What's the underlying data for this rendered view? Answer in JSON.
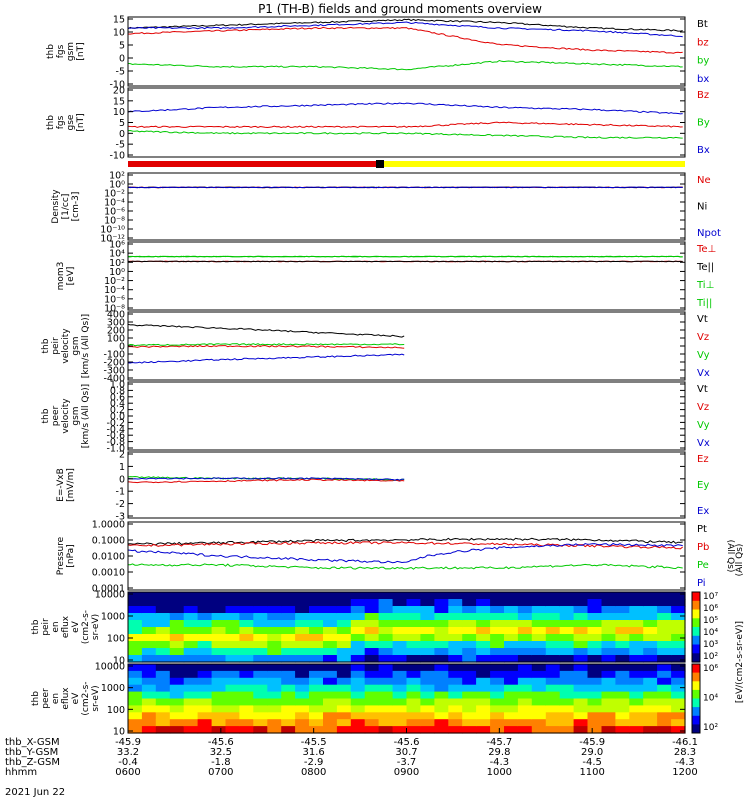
{
  "title": "P1 (TH-B) fields and ground moments overview",
  "panels": [
    {
      "id": "fgs_gsm",
      "ylabel": [
        "thb",
        "fgs",
        "gsm",
        "[nT]"
      ],
      "ticks": [
        "15",
        "10",
        "5",
        "0",
        "-5",
        "-10"
      ],
      "legend": [
        {
          "text": "Bt",
          "color": "#000000"
        },
        {
          "text": "bz",
          "color": "#e00000"
        },
        {
          "text": "by",
          "color": "#00c800"
        },
        {
          "text": "bx",
          "color": "#0000d0"
        }
      ]
    },
    {
      "id": "fgs_gse",
      "ylabel": [
        "thb",
        "fgs",
        "gse",
        "[nT]"
      ],
      "ticks": [
        "20",
        "15",
        "10",
        "5",
        "0",
        "-5",
        "-10"
      ],
      "legend": [
        {
          "text": "Bz",
          "color": "#e00000"
        },
        {
          "text": "By",
          "color": "#00c800"
        },
        {
          "text": "Bx",
          "color": "#0000d0"
        }
      ]
    },
    {
      "id": "density",
      "ylabel": [
        "Density",
        "[1/cc]",
        "[cm-3]"
      ],
      "ticks": [
        "10²",
        "10⁰",
        "10⁻²",
        "10⁻⁴",
        "10⁻⁶",
        "10⁻⁸",
        "10⁻¹⁰",
        "10⁻¹²"
      ],
      "legend": [
        {
          "text": "Ne",
          "color": "#e00000"
        },
        {
          "text": "Ni",
          "color": "#000000"
        },
        {
          "text": "Npot",
          "color": "#0000d0"
        }
      ]
    },
    {
      "id": "temperature",
      "ylabel": [
        "mom3",
        "[eV]"
      ],
      "ticks": [
        "10⁶",
        "10⁴",
        "10²",
        "10⁰",
        "10⁻²",
        "10⁻⁴",
        "10⁻⁶",
        "10⁻⁸"
      ],
      "legend": [
        {
          "text": "Te⊥",
          "color": "#e00000"
        },
        {
          "text": "Te||",
          "color": "#000000"
        },
        {
          "text": "Ti⊥",
          "color": "#00c800"
        },
        {
          "text": "Ti||",
          "color": "#00c800"
        }
      ]
    },
    {
      "id": "peir_velocity",
      "ylabel": [
        "thb",
        "peir",
        "velocity",
        "gsm",
        "[km/s (All Qs)]"
      ],
      "ticks": [
        "400",
        "300",
        "200",
        "100",
        "0",
        "-100",
        "-200",
        "-300",
        "-400"
      ],
      "legend": [
        {
          "text": "Vt",
          "color": "#000000"
        },
        {
          "text": "Vz",
          "color": "#e00000"
        },
        {
          "text": "Vy",
          "color": "#00c800"
        },
        {
          "text": "Vx",
          "color": "#0000d0"
        }
      ]
    },
    {
      "id": "peer_velocity",
      "ylabel": [
        "thb",
        "peer",
        "velocity",
        "gsm",
        "[km/s (All Qs)]"
      ],
      "ticks": [
        "1.0",
        "0.8",
        "0.6",
        "0.4",
        "0.2",
        "0.0",
        "-0.2",
        "-0.4",
        "-0.6",
        "-0.8",
        "-1.0"
      ],
      "legend": [
        {
          "text": "Vt",
          "color": "#000000"
        },
        {
          "text": "Vz",
          "color": "#e00000"
        },
        {
          "text": "Vy",
          "color": "#00c800"
        },
        {
          "text": "Vx",
          "color": "#0000d0"
        }
      ]
    },
    {
      "id": "efield",
      "ylabel": [
        "E=-VxB",
        "[mV/m]"
      ],
      "ticks": [
        "2",
        "1",
        "0",
        "-1",
        "-2",
        "-3"
      ],
      "legend": [
        {
          "text": "Ez",
          "color": "#e00000"
        },
        {
          "text": "Ey",
          "color": "#00c800"
        },
        {
          "text": "Ex",
          "color": "#0000d0"
        }
      ]
    },
    {
      "id": "pressure",
      "ylabel": [
        "Pressure",
        "[nPa]"
      ],
      "ticks": [
        "1.0000",
        "0.1000",
        "0.0100",
        "0.0010",
        "0.0001"
      ],
      "legend": [
        {
          "text": "Pt",
          "color": "#000000"
        },
        {
          "text": "Pb",
          "color": "#e00000"
        },
        {
          "text": "Pe",
          "color": "#00c800"
        },
        {
          "text": "Pi",
          "color": "#0000d0"
        }
      ],
      "legend_note": "(All Qs)"
    },
    {
      "id": "peir_spec",
      "ylabel": [
        "thb",
        "peir",
        "en",
        "eflux",
        "eV",
        "(cm2-s-",
        "sr-eV)"
      ],
      "ticks": [
        "10000",
        "1000",
        "100",
        "10"
      ],
      "colorbar": [
        "10⁷",
        "10⁶",
        "10⁵",
        "10⁴",
        "10³",
        "10²"
      ]
    },
    {
      "id": "peer_spec",
      "ylabel": [
        "thb",
        "peer",
        "en",
        "eflux",
        "eV",
        "(cm2-s-",
        "sr-eV)"
      ],
      "ticks": [
        "10000",
        "1000",
        "100",
        "10"
      ],
      "colorbar": [
        "10⁶",
        "10⁴",
        "10²"
      ]
    }
  ],
  "colorbar_label": "[eV/(cm2-s-sr-eV)]",
  "colorbar_label2": "(All Qs)",
  "xaxis": {
    "rows": [
      {
        "label": "thb_X-GSM",
        "values": [
          "-45.9",
          "-45.6",
          "-45.5",
          "-45.6",
          "-45.7",
          "-45.9",
          "-46.1"
        ]
      },
      {
        "label": "thb_Y-GSM",
        "values": [
          "33.2",
          "32.5",
          "31.6",
          "30.7",
          "29.8",
          "29.0",
          "28.3"
        ]
      },
      {
        "label": "thb_Z-GSM",
        "values": [
          "-0.4",
          "-1.8",
          "-2.9",
          "-3.7",
          "-4.3",
          "-4.5",
          "-4.3"
        ]
      },
      {
        "label": "hhmm",
        "values": [
          "0600",
          "0700",
          "0800",
          "0900",
          "1000",
          "1100",
          "1200"
        ]
      }
    ],
    "date": "2021 Jun 22"
  },
  "chart_data": {
    "type": "line",
    "title": "P1 (TH-B) fields and ground moments overview",
    "x": [
      "0600",
      "0700",
      "0800",
      "0900",
      "1000",
      "1100",
      "1200"
    ],
    "xlabel": "hhmm",
    "panels": [
      {
        "name": "fgs gsm",
        "ylabel": "[nT]",
        "ylim": [
          -10,
          15
        ],
        "series": [
          {
            "name": "Bt",
            "values": [
              11,
              12,
              13,
              14,
              13,
              11,
              10
            ]
          },
          {
            "name": "bz",
            "values": [
              9,
              10,
              11,
              11,
              5,
              3,
              2
            ]
          },
          {
            "name": "by",
            "values": [
              -2,
              -3,
              -3,
              -4,
              -1,
              -2,
              -3
            ]
          },
          {
            "name": "bx",
            "values": [
              11,
              11,
              12,
              13,
              11,
              10,
              8
            ]
          }
        ]
      },
      {
        "name": "fgs gse",
        "ylabel": "[nT]",
        "ylim": [
          -12,
          20
        ],
        "series": [
          {
            "name": "Bz",
            "values": [
              2,
              2,
              2,
              2,
              4,
              3,
              2
            ]
          },
          {
            "name": "By",
            "values": [
              0,
              -1,
              -1,
              -1,
              -2,
              -3,
              -3
            ]
          },
          {
            "name": "Bx",
            "values": [
              9,
              11,
              12,
              13,
              11,
              10,
              8
            ]
          }
        ]
      },
      {
        "name": "Density",
        "ylabel": "[1/cc] [cm-3]",
        "scale": "log",
        "ylim": [
          1e-12,
          100
        ],
        "series": [
          {
            "name": "Ne",
            "values": [
              0.1,
              0.1,
              0.1,
              0.1,
              0.1,
              0.1,
              0.1
            ]
          },
          {
            "name": "Ni",
            "values": [
              0.1,
              0.1,
              0.1,
              0.1,
              0.1,
              0.1,
              0.1
            ]
          },
          {
            "name": "Npot",
            "values": [
              0.1,
              0.1,
              0.1,
              0.1,
              0.1,
              0.1,
              0.1
            ]
          }
        ]
      },
      {
        "name": "mom3",
        "ylabel": "[eV]",
        "scale": "log",
        "ylim": [
          1e-08,
          1000000.0
        ],
        "series": [
          {
            "name": "Te⊥",
            "values": [
              100,
              100,
              100,
              100,
              100,
              100,
              100
            ]
          },
          {
            "name": "Te||",
            "values": [
              100,
              100,
              100,
              100,
              100,
              100,
              100
            ]
          },
          {
            "name": "Ti⊥",
            "values": [
              1000,
              1000,
              1000,
              1000,
              1000,
              1000,
              1000
            ]
          },
          {
            "name": "Ti||",
            "values": [
              1000,
              1000,
              1000,
              1000,
              1000,
              1000,
              1000
            ]
          }
        ]
      },
      {
        "name": "peir velocity gsm",
        "ylabel": "[km/s (All Qs)]",
        "ylim": [
          -400,
          400
        ],
        "series": [
          {
            "name": "Vt",
            "values": [
              250,
              210,
              160,
              110,
              null,
              null,
              null
            ]
          },
          {
            "name": "Vz",
            "values": [
              -10,
              0,
              -5,
              -20,
              null,
              null,
              null
            ]
          },
          {
            "name": "Vy",
            "values": [
              10,
              20,
              20,
              20,
              null,
              null,
              null
            ]
          },
          {
            "name": "Vx",
            "values": [
              -200,
              -160,
              -130,
              -100,
              null,
              null,
              null
            ]
          }
        ]
      },
      {
        "name": "peer velocity gsm",
        "ylabel": "[km/s (All Qs)]",
        "ylim": [
          -1,
          1
        ],
        "series": []
      },
      {
        "name": "E=-VxB",
        "ylabel": "[mV/m]",
        "ylim": [
          -3,
          2
        ],
        "series": [
          {
            "name": "Ez",
            "values": [
              -0.3,
              -0.2,
              -0.1,
              -0.2,
              null,
              null,
              null
            ]
          },
          {
            "name": "Ey",
            "values": [
              0.1,
              0.0,
              0.0,
              -0.1,
              null,
              null,
              null
            ]
          },
          {
            "name": "Ex",
            "values": [
              0.0,
              0.0,
              0.0,
              -0.1,
              null,
              null,
              null
            ]
          }
        ]
      },
      {
        "name": "Pressure",
        "ylabel": "[nPa]",
        "scale": "log",
        "ylim": [
          0.0001,
          1
        ],
        "series": [
          {
            "name": "Pt",
            "values": [
              0.05,
              0.06,
              0.08,
              0.09,
              0.1,
              0.09,
              0.06
            ]
          },
          {
            "name": "Pb",
            "values": [
              0.04,
              0.05,
              0.06,
              0.06,
              0.05,
              0.04,
              0.03
            ]
          },
          {
            "name": "Pe",
            "values": [
              0.003,
              0.003,
              0.002,
              0.002,
              0.002,
              0.003,
              0.002
            ]
          },
          {
            "name": "Pi",
            "values": [
              0.02,
              0.01,
              0.006,
              0.004,
              0.03,
              0.05,
              0.04
            ]
          }
        ]
      }
    ]
  }
}
